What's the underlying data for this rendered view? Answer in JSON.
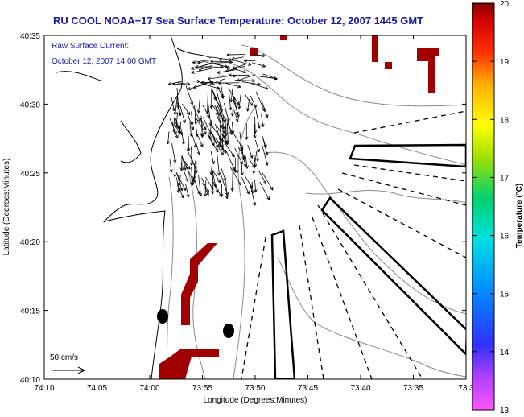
{
  "chart_data": {
    "type": "map",
    "title": "RU COOL  NOAA−17  Sea Surface Temperature:  October 12, 2007 1445 GMT",
    "annotation_lines": [
      "Raw Surface Current:",
      "October 12, 2007 14:00 GMT"
    ],
    "xlabel": "Longitude (Degrees:Minutes)",
    "ylabel": "Latitude (Degrees:Minutes)",
    "x_ticks": [
      "74:10",
      "74:05",
      "74:00",
      "73:55",
      "73:50",
      "73:45",
      "73:40",
      "73:35",
      "73:3"
    ],
    "y_ticks": [
      "40:10",
      "40:15",
      "40:20",
      "40:25",
      "40:30",
      "40:35"
    ],
    "xlim_minutes_west": [
      70,
      30
    ],
    "ylim_minutes": [
      10,
      35
    ],
    "scale_vector_label": "50 cm/s",
    "colorbar": {
      "label": "Temperature (°C)",
      "ticks": [
        "13",
        "14",
        "15",
        "16",
        "17",
        "18",
        "19",
        "20"
      ],
      "range": [
        13,
        20
      ]
    },
    "sst_patch_color": "#a00000",
    "vector_color": "#000000"
  }
}
